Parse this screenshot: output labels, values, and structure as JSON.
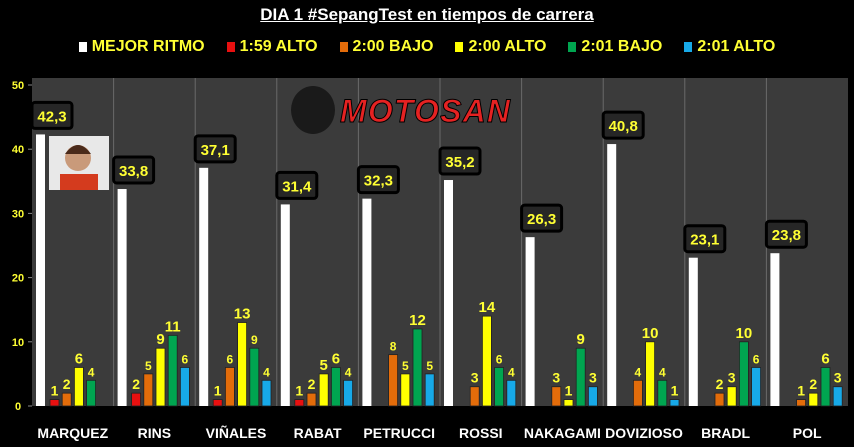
{
  "chart_data": {
    "type": "bar",
    "title": "DIA 1 #SepangTest en tiempos de carrera",
    "xlabel": "",
    "ylabel": "",
    "ylim": [
      0,
      50
    ],
    "yticks": [
      "0",
      "10",
      "20",
      "30",
      "40",
      "50"
    ],
    "grid": true,
    "legend_position": "top",
    "categories": [
      "MARQUEZ",
      "RINS",
      "VIÑALES",
      "RABAT",
      "PETRUCCI",
      "ROSSI",
      "NAKAGAMI",
      "DOVIZIOSO",
      "BRADL",
      "POL"
    ],
    "series": [
      {
        "name": "MEJOR RITMO",
        "color": "#ffffff",
        "values": [
          42.3,
          33.8,
          37.1,
          31.4,
          32.3,
          35.2,
          26.3,
          40.8,
          23.1,
          23.8
        ],
        "labels": [
          "42,3",
          "33,8",
          "37,1",
          "31,4",
          "32,3",
          "35,2",
          "26,3",
          "40,8",
          "23,1",
          "23,8"
        ]
      },
      {
        "name": "1:59 ALTO",
        "color": "#e81010",
        "values": [
          1,
          2,
          1,
          1,
          null,
          null,
          null,
          null,
          null,
          null
        ]
      },
      {
        "name": "2:00 BAJO",
        "color": "#e36c0a",
        "values": [
          2,
          5,
          6,
          2,
          8,
          3,
          3,
          4,
          2,
          1
        ]
      },
      {
        "name": "2:00 ALTO",
        "color": "#ffff00",
        "values": [
          6,
          9,
          13,
          5,
          5,
          14,
          1,
          10,
          3,
          2
        ]
      },
      {
        "name": "2:01 BAJO",
        "color": "#00a550",
        "values": [
          4,
          11,
          9,
          6,
          12,
          6,
          9,
          4,
          10,
          6
        ]
      },
      {
        "name": "2:01 ALTO",
        "color": "#17a9e8",
        "values": [
          null,
          6,
          4,
          4,
          5,
          4,
          3,
          1,
          6,
          3
        ]
      }
    ]
  },
  "watermark": "MOTOSAN"
}
